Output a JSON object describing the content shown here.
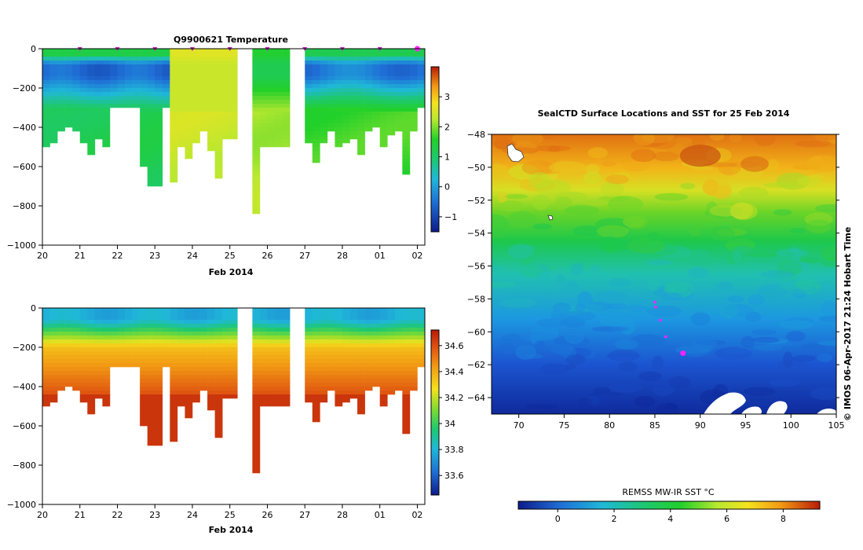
{
  "chart_data": [
    {
      "type": "heatmap",
      "title": "Q9900621  Temperature",
      "xlabel": "Feb 2014",
      "ylabel": "",
      "x_tick_labels": [
        "20",
        "21",
        "22",
        "23",
        "24",
        "25",
        "26",
        "27",
        "28",
        "01",
        "02"
      ],
      "y_tick_labels": [
        "0",
        "−200",
        "−400",
        "−600",
        "−800",
        "−1000"
      ],
      "ylim": [
        -1000,
        0
      ],
      "colorbar": {
        "ticks": [
          "−1",
          "0",
          "1",
          "2",
          "3"
        ],
        "range": [
          -1.5,
          4.0
        ]
      },
      "profile_days": [
        0.0,
        0.2,
        0.4,
        0.6,
        0.8,
        1.0,
        1.2,
        1.4,
        1.6,
        1.8,
        2.0,
        2.2,
        2.4,
        2.6,
        2.8,
        3.0,
        3.2,
        3.4,
        3.6,
        3.8,
        4.0,
        4.2,
        4.4,
        4.6,
        4.8,
        5.0,
        5.6,
        5.8,
        6.0,
        6.2,
        6.4,
        7.0,
        7.2,
        7.4,
        7.6,
        7.8,
        8.0,
        8.2,
        8.4,
        8.6,
        8.8,
        9.0,
        9.2,
        9.4,
        9.6,
        9.8,
        10.0
      ],
      "max_depths": [
        500,
        480,
        420,
        400,
        410,
        480,
        530,
        460,
        490,
        300,
        300,
        300,
        300,
        600,
        700,
        700,
        300,
        680,
        500,
        560,
        480,
        410,
        520,
        650,
        460,
        460,
        840,
        490,
        490,
        490,
        490,
        470,
        580,
        470,
        420,
        490,
        480,
        450,
        530,
        420,
        400,
        500,
        430,
        420,
        640,
        420,
        300
      ],
      "surface_markers_days": [
        1,
        2,
        3,
        4,
        5,
        6,
        7,
        8,
        9,
        10
      ]
    },
    {
      "type": "heatmap",
      "title": "",
      "xlabel": "Feb 2014",
      "ylabel": "",
      "x_tick_labels": [
        "20",
        "21",
        "22",
        "23",
        "24",
        "25",
        "26",
        "27",
        "28",
        "01",
        "02"
      ],
      "y_tick_labels": [
        "0",
        "−200",
        "−400",
        "−600",
        "−800",
        "−1000"
      ],
      "ylim": [
        -1000,
        0
      ],
      "colorbar": {
        "ticks": [
          "33.6",
          "33.8",
          "34",
          "34.2",
          "34.4",
          "34.6"
        ],
        "range": [
          33.45,
          34.72
        ]
      }
    },
    {
      "type": "heatmap",
      "title": "SealCTD Surface Locations and SST for 25 Feb 2014",
      "xlabel": "",
      "ylabel": "",
      "x_tick_labels": [
        "70",
        "75",
        "80",
        "85",
        "90",
        "95",
        "100",
        "105"
      ],
      "y_tick_labels": [
        "−48",
        "−50",
        "−52",
        "−54",
        "−56",
        "−58",
        "−60",
        "−62",
        "−64"
      ],
      "xlim": [
        67,
        105
      ],
      "ylim": [
        -65,
        -48
      ],
      "side_label": "© IMOS 06-Apr-2017 21:24 Hobart Time",
      "track_points": [
        {
          "lon": 85.0,
          "lat": -58.2
        },
        {
          "lon": 85.1,
          "lat": -58.5
        },
        {
          "lon": 85.6,
          "lat": -59.3
        },
        {
          "lon": 86.2,
          "lat": -60.3
        },
        {
          "lon": 88.1,
          "lat": -61.3
        }
      ],
      "colorbar": {
        "label": "REMSS MW-IR SST °C",
        "ticks": [
          "0",
          "2",
          "4",
          "6",
          "8"
        ],
        "range": [
          -1.4,
          9.3
        ]
      }
    }
  ]
}
